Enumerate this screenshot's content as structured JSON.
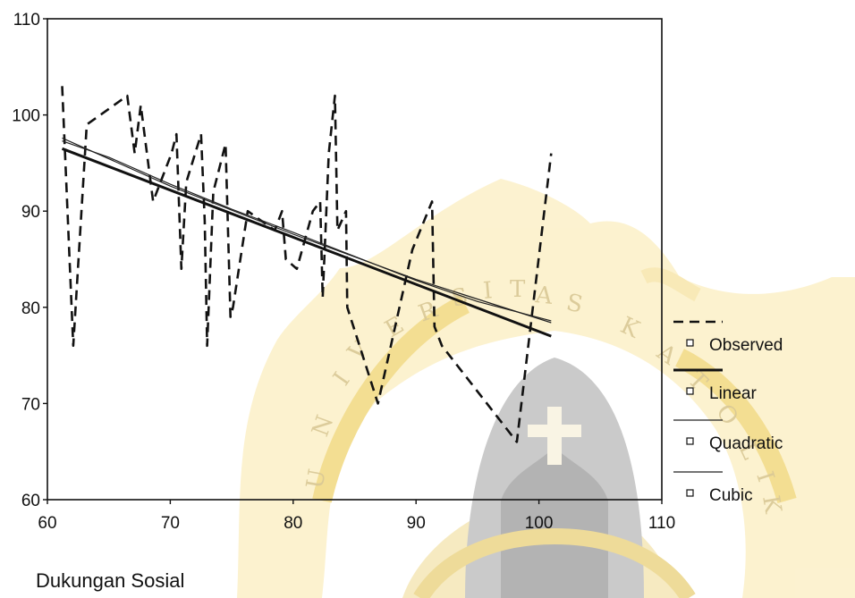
{
  "chart_data": {
    "type": "line",
    "title": "",
    "xlabel": "Dukungan Sosial",
    "ylabel": "",
    "xlim": [
      60,
      110
    ],
    "ylim": [
      60,
      110
    ],
    "x_ticks": [
      60,
      70,
      80,
      90,
      100,
      110
    ],
    "y_ticks": [
      60,
      70,
      80,
      90,
      100,
      110
    ],
    "grid": false,
    "legend_position": "right",
    "series": [
      {
        "name": "Observed",
        "style": "dashed",
        "x": [
          61.2,
          62.1,
          63.2,
          66.5,
          67.1,
          67.6,
          68.6,
          70.1,
          70.5,
          70.9,
          71.3,
          72.5,
          72.8,
          73.0,
          73.5,
          74.5,
          74.9,
          75.1,
          76.3,
          78.5,
          79.1,
          79.4,
          80.3,
          81.6,
          82.2,
          82.4,
          82.9,
          83.4,
          83.6,
          84.3,
          84.4,
          86.9,
          89.7,
          91.3,
          91.5,
          92.1,
          98.2,
          101.0
        ],
        "y": [
          103,
          76,
          99,
          102,
          96,
          101,
          91,
          96,
          98,
          84,
          93,
          98,
          89,
          76,
          92,
          97,
          79,
          80,
          90,
          88,
          90,
          85,
          84,
          90,
          91,
          81,
          96,
          102,
          88,
          90,
          80,
          70,
          86,
          91,
          78,
          76,
          66,
          96
        ]
      },
      {
        "name": "Linear",
        "style": "solid-thick",
        "x": [
          61.2,
          101.0
        ],
        "y": [
          96.5,
          77.0
        ]
      },
      {
        "name": "Quadratic",
        "style": "solid-thin",
        "x": [
          61.2,
          70,
          80,
          90,
          101.0
        ],
        "y": [
          97.6,
          92.6,
          87.6,
          82.9,
          78.4
        ]
      },
      {
        "name": "Cubic",
        "style": "solid-thin",
        "x": [
          61.2,
          65,
          70,
          75,
          80,
          85,
          90,
          95,
          101.0
        ],
        "y": [
          97.3,
          95.6,
          92.8,
          90.2,
          87.8,
          85.3,
          82.8,
          80.6,
          78.6
        ]
      }
    ]
  },
  "watermark": {
    "arc_text": "UNIVERSITAS KATOLIK",
    "color": "#f2d98a"
  }
}
